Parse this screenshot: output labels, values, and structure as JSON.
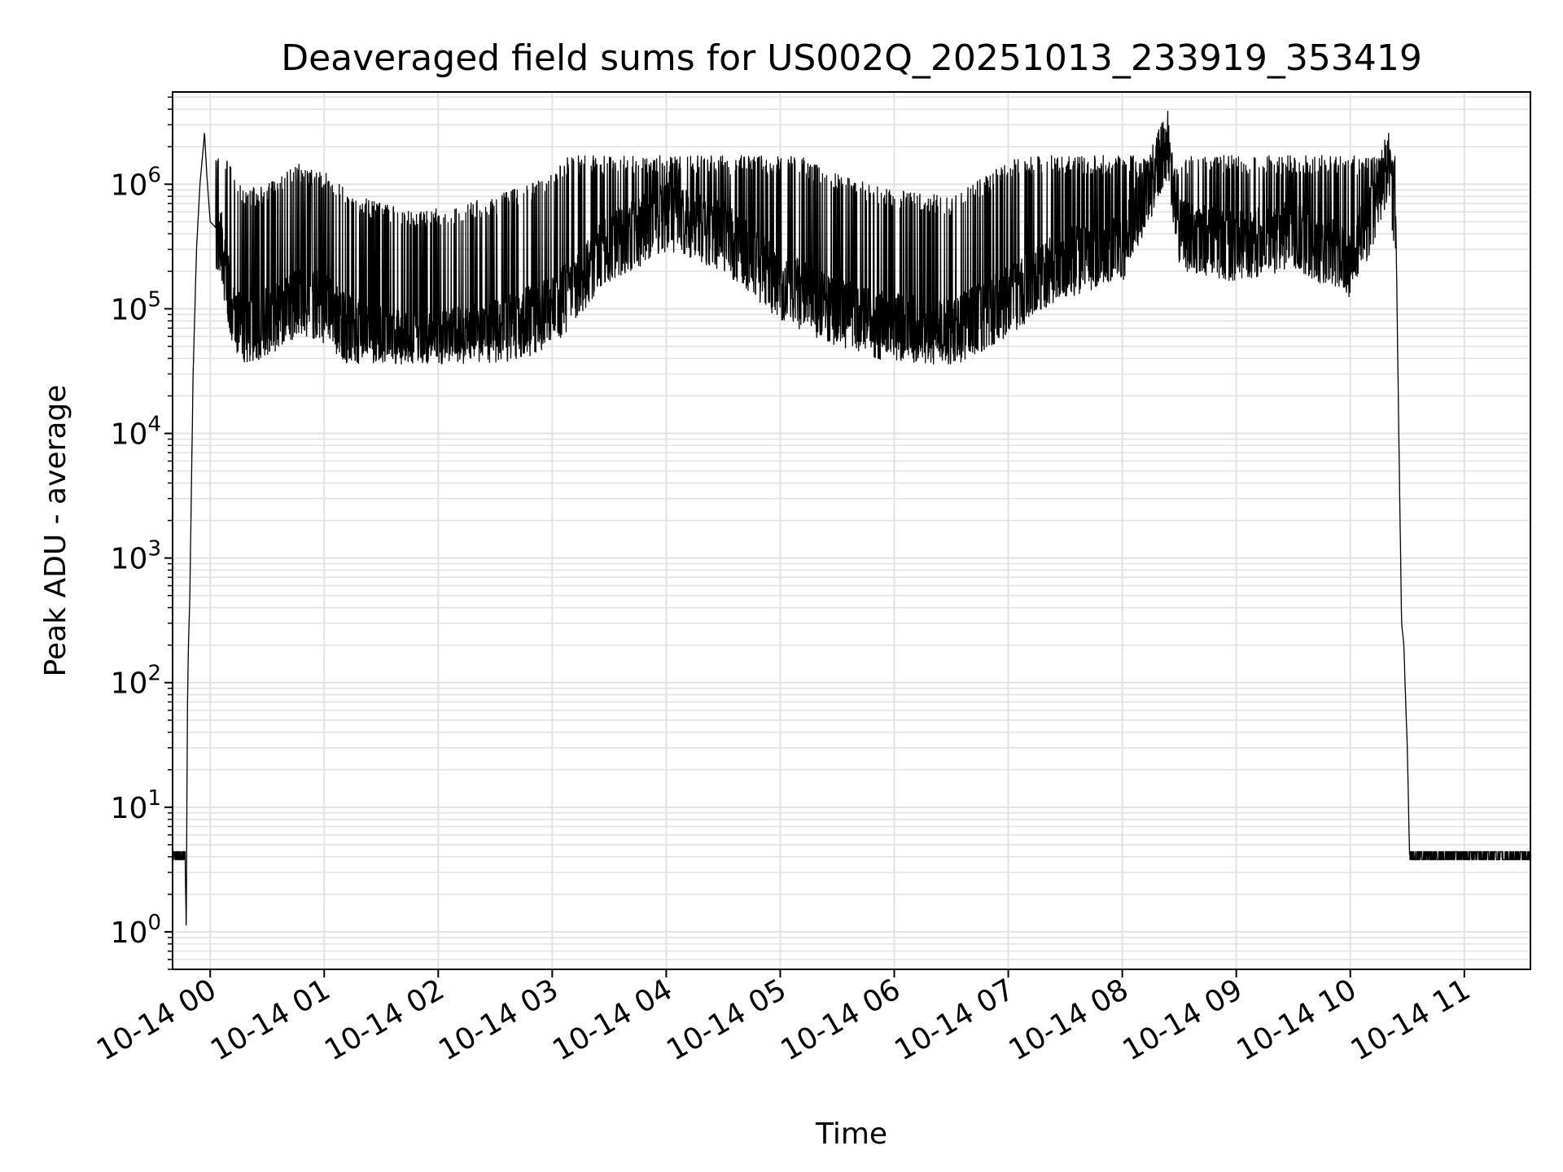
{
  "chart_data": {
    "type": "line",
    "title": "Deaveraged field sums for US002Q_20251013_233919_353419",
    "xlabel": "Time",
    "ylabel": "Peak ADU - average",
    "yscale": "log",
    "ylim": [
      0.5,
      5500000
    ],
    "xlim_hours": [
      -0.33,
      11.58
    ],
    "grid": true,
    "y_ticks": [
      {
        "base": "10",
        "exp": "0",
        "value": 1
      },
      {
        "base": "10",
        "exp": "1",
        "value": 10
      },
      {
        "base": "10",
        "exp": "2",
        "value": 100
      },
      {
        "base": "10",
        "exp": "3",
        "value": 1000
      },
      {
        "base": "10",
        "exp": "4",
        "value": 10000
      },
      {
        "base": "10",
        "exp": "5",
        "value": 100000
      },
      {
        "base": "10",
        "exp": "6",
        "value": 1000000
      }
    ],
    "x_ticks": [
      {
        "label": "10-14 00",
        "hour": 0
      },
      {
        "label": "10-14 01",
        "hour": 1
      },
      {
        "label": "10-14 02",
        "hour": 2
      },
      {
        "label": "10-14 03",
        "hour": 3
      },
      {
        "label": "10-14 04",
        "hour": 4
      },
      {
        "label": "10-14 05",
        "hour": 5
      },
      {
        "label": "10-14 06",
        "hour": 6
      },
      {
        "label": "10-14 07",
        "hour": 7
      },
      {
        "label": "10-14 08",
        "hour": 8
      },
      {
        "label": "10-14 09",
        "hour": 9
      },
      {
        "label": "10-14 10",
        "hour": 10
      },
      {
        "label": "10-14 11",
        "hour": 11
      }
    ],
    "series": [
      {
        "name": "field sums",
        "color": "#000000",
        "points": [
          [
            -0.33,
            4
          ],
          [
            -0.22,
            4
          ],
          [
            -0.21,
            1
          ],
          [
            -0.2,
            60
          ],
          [
            -0.19,
            220
          ],
          [
            -0.18,
            420
          ],
          [
            -0.15,
            30000
          ],
          [
            -0.12,
            300000
          ],
          [
            -0.09,
            1000000
          ],
          [
            -0.06,
            2000000
          ],
          [
            -0.05,
            2600000
          ],
          [
            -0.03,
            1200000
          ],
          [
            0.0,
            500000
          ],
          [
            0.1,
            400000
          ],
          [
            0.15,
            200000
          ],
          [
            0.2,
            120000
          ],
          [
            0.3,
            90000
          ],
          [
            0.5,
            100000
          ],
          [
            0.8,
            150000
          ],
          [
            1.0,
            130000
          ],
          [
            1.2,
            90000
          ],
          [
            1.5,
            70000
          ],
          [
            1.8,
            60000
          ],
          [
            2.2,
            70000
          ],
          [
            2.5,
            80000
          ],
          [
            3.0,
            120000
          ],
          [
            3.5,
            400000
          ],
          [
            4.0,
            700000
          ],
          [
            4.5,
            500000
          ],
          [
            5.0,
            200000
          ],
          [
            5.5,
            120000
          ],
          [
            6.0,
            90000
          ],
          [
            6.5,
            80000
          ],
          [
            7.0,
            150000
          ],
          [
            7.5,
            300000
          ],
          [
            8.0,
            400000
          ],
          [
            8.4,
            2700000
          ],
          [
            8.5,
            500000
          ],
          [
            9.0,
            400000
          ],
          [
            9.5,
            500000
          ],
          [
            10.0,
            300000
          ],
          [
            10.1,
            500000
          ],
          [
            10.2,
            700000
          ],
          [
            10.3,
            1500000
          ],
          [
            10.33,
            2000000
          ],
          [
            10.36,
            1200000
          ],
          [
            10.4,
            500000
          ],
          [
            10.43,
            5000
          ],
          [
            10.45,
            300
          ],
          [
            10.47,
            200
          ],
          [
            10.48,
            100
          ],
          [
            10.5,
            30
          ],
          [
            10.52,
            4
          ],
          [
            11.58,
            4
          ]
        ]
      }
    ]
  }
}
